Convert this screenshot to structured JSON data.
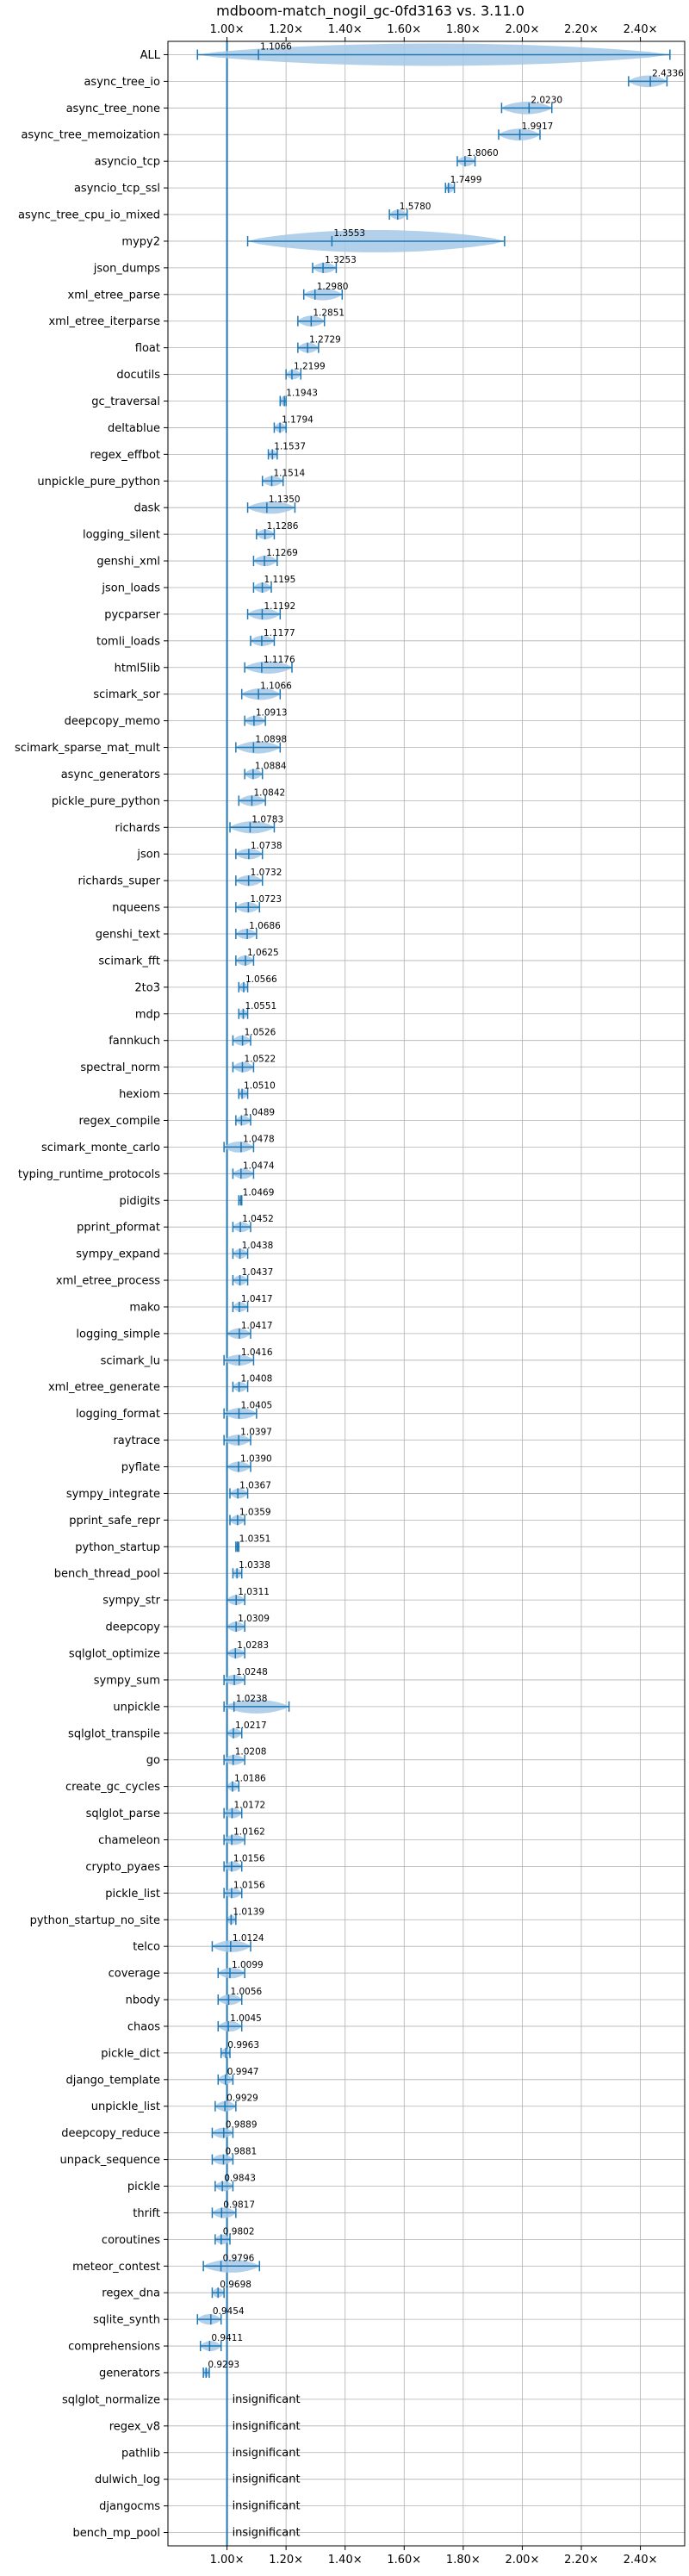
{
  "chart_data": {
    "type": "violin",
    "title": "mdboom-match_nogil_gc-0fd3163 vs. 3.11.0",
    "xlim": [
      0.8,
      2.55
    ],
    "xticks": [
      "1.00×",
      "1.20×",
      "1.40×",
      "1.60×",
      "1.80×",
      "2.00×",
      "2.20×",
      "2.40×"
    ],
    "xtick_values": [
      1.0,
      1.2,
      1.4,
      1.6,
      1.8,
      2.0,
      2.2,
      2.4
    ],
    "reference_line": 1.0,
    "grid": true,
    "accent_color": "#1f77b4",
    "violin_fill": "#a6c8e6",
    "categories": [
      "ALL",
      "async_tree_io",
      "async_tree_none",
      "async_tree_memoization",
      "asyncio_tcp",
      "asyncio_tcp_ssl",
      "async_tree_cpu_io_mixed",
      "mypy2",
      "json_dumps",
      "xml_etree_parse",
      "xml_etree_iterparse",
      "float",
      "docutils",
      "gc_traversal",
      "deltablue",
      "regex_effbot",
      "unpickle_pure_python",
      "dask",
      "logging_silent",
      "genshi_xml",
      "json_loads",
      "pycparser",
      "tomli_loads",
      "html5lib",
      "scimark_sor",
      "deepcopy_memo",
      "scimark_sparse_mat_mult",
      "async_generators",
      "pickle_pure_python",
      "richards",
      "json",
      "richards_super",
      "nqueens",
      "genshi_text",
      "scimark_fft",
      "2to3",
      "mdp",
      "fannkuch",
      "spectral_norm",
      "hexiom",
      "regex_compile",
      "scimark_monte_carlo",
      "typing_runtime_protocols",
      "pidigits",
      "pprint_pformat",
      "sympy_expand",
      "xml_etree_process",
      "mako",
      "logging_simple",
      "scimark_lu",
      "xml_etree_generate",
      "logging_format",
      "raytrace",
      "pyflate",
      "sympy_integrate",
      "pprint_safe_repr",
      "python_startup",
      "bench_thread_pool",
      "sympy_str",
      "deepcopy",
      "sqlglot_optimize",
      "sympy_sum",
      "unpickle",
      "sqlglot_transpile",
      "go",
      "create_gc_cycles",
      "sqlglot_parse",
      "chameleon",
      "crypto_pyaes",
      "pickle_list",
      "python_startup_no_site",
      "telco",
      "coverage",
      "nbody",
      "chaos",
      "pickle_dict",
      "django_template",
      "unpickle_list",
      "deepcopy_reduce",
      "unpack_sequence",
      "pickle",
      "thrift",
      "coroutines",
      "meteor_contest",
      "regex_dna",
      "sqlite_synth",
      "comprehensions",
      "generators",
      "sqlglot_normalize",
      "regex_v8",
      "pathlib",
      "dulwich_log",
      "djangocms",
      "bench_mp_pool"
    ],
    "values": [
      1.1066,
      2.4336,
      2.023,
      1.9917,
      1.806,
      1.7499,
      1.578,
      1.3553,
      1.3253,
      1.298,
      1.2851,
      1.2729,
      1.2199,
      1.1943,
      1.1794,
      1.1537,
      1.1514,
      1.135,
      1.1286,
      1.1269,
      1.1195,
      1.1192,
      1.1177,
      1.1176,
      1.1066,
      1.0913,
      1.0898,
      1.0884,
      1.0842,
      1.0783,
      1.0738,
      1.0732,
      1.0723,
      1.0686,
      1.0625,
      1.0566,
      1.0551,
      1.0526,
      1.0522,
      1.051,
      1.0489,
      1.0478,
      1.0474,
      1.0469,
      1.0452,
      1.0438,
      1.0437,
      1.0417,
      1.0417,
      1.0416,
      1.0408,
      1.0405,
      1.0397,
      1.039,
      1.0367,
      1.0359,
      1.0351,
      1.0338,
      1.0311,
      1.0309,
      1.0283,
      1.0248,
      1.0238,
      1.0217,
      1.0208,
      1.0186,
      1.0172,
      1.0162,
      1.0156,
      1.0156,
      1.0139,
      1.0124,
      1.0099,
      1.0056,
      1.0045,
      0.9963,
      0.9947,
      0.9929,
      0.9889,
      0.9881,
      0.9843,
      0.9817,
      0.9802,
      0.9796,
      0.9698,
      0.9454,
      0.9411,
      0.9293,
      null,
      null,
      null,
      null,
      null,
      null
    ],
    "value_labels": [
      "1.1066",
      "2.4336",
      "2.0230",
      "1.9917",
      "1.8060",
      "1.7499",
      "1.5780",
      "1.3553",
      "1.3253",
      "1.2980",
      "1.2851",
      "1.2729",
      "1.2199",
      "1.1943",
      "1.1794",
      "1.1537",
      "1.1514",
      "1.1350",
      "1.1286",
      "1.1269",
      "1.1195",
      "1.1192",
      "1.1177",
      "1.1176",
      "1.1066",
      "1.0913",
      "1.0898",
      "1.0884",
      "1.0842",
      "1.0783",
      "1.0738",
      "1.0732",
      "1.0723",
      "1.0686",
      "1.0625",
      "1.0566",
      "1.0551",
      "1.0526",
      "1.0522",
      "1.0510",
      "1.0489",
      "1.0478",
      "1.0474",
      "1.0469",
      "1.0452",
      "1.0438",
      "1.0437",
      "1.0417",
      "1.0417",
      "1.0416",
      "1.0408",
      "1.0405",
      "1.0397",
      "1.0390",
      "1.0367",
      "1.0359",
      "1.0351",
      "1.0338",
      "1.0311",
      "1.0309",
      "1.0283",
      "1.0248",
      "1.0238",
      "1.0217",
      "1.0208",
      "1.0186",
      "1.0172",
      "1.0162",
      "1.0156",
      "1.0156",
      "1.0139",
      "1.0124",
      "1.0099",
      "1.0056",
      "1.0045",
      "0.9963",
      "0.9947",
      "0.9929",
      "0.9889",
      "0.9881",
      "0.9843",
      "0.9817",
      "0.9802",
      "0.9796",
      "0.9698",
      "0.9454",
      "0.9411",
      "0.9293",
      "",
      "",
      "",
      "",
      "",
      ""
    ],
    "insignificant_label": "insignificant",
    "whisker_ranges": [
      [
        0.9,
        2.5
      ],
      [
        2.36,
        2.49
      ],
      [
        1.93,
        2.1
      ],
      [
        1.92,
        2.06
      ],
      [
        1.78,
        1.84
      ],
      [
        1.74,
        1.77
      ],
      [
        1.55,
        1.61
      ],
      [
        1.07,
        1.94
      ],
      [
        1.29,
        1.37
      ],
      [
        1.26,
        1.39
      ],
      [
        1.24,
        1.33
      ],
      [
        1.24,
        1.31
      ],
      [
        1.2,
        1.25
      ],
      [
        1.18,
        1.2
      ],
      [
        1.16,
        1.2
      ],
      [
        1.14,
        1.17
      ],
      [
        1.12,
        1.19
      ],
      [
        1.07,
        1.23
      ],
      [
        1.1,
        1.16
      ],
      [
        1.09,
        1.17
      ],
      [
        1.09,
        1.15
      ],
      [
        1.07,
        1.18
      ],
      [
        1.08,
        1.16
      ],
      [
        1.06,
        1.22
      ],
      [
        1.05,
        1.18
      ],
      [
        1.06,
        1.13
      ],
      [
        1.03,
        1.18
      ],
      [
        1.06,
        1.12
      ],
      [
        1.04,
        1.13
      ],
      [
        1.01,
        1.16
      ],
      [
        1.03,
        1.12
      ],
      [
        1.03,
        1.12
      ],
      [
        1.03,
        1.11
      ],
      [
        1.03,
        1.1
      ],
      [
        1.03,
        1.09
      ],
      [
        1.04,
        1.07
      ],
      [
        1.04,
        1.07
      ],
      [
        1.02,
        1.08
      ],
      [
        1.02,
        1.09
      ],
      [
        1.04,
        1.07
      ],
      [
        1.03,
        1.08
      ],
      [
        0.99,
        1.09
      ],
      [
        1.02,
        1.09
      ],
      [
        1.04,
        1.05
      ],
      [
        1.02,
        1.08
      ],
      [
        1.02,
        1.07
      ],
      [
        1.02,
        1.07
      ],
      [
        1.02,
        1.07
      ],
      [
        1.0,
        1.08
      ],
      [
        0.99,
        1.09
      ],
      [
        1.02,
        1.07
      ],
      [
        0.99,
        1.1
      ],
      [
        0.99,
        1.08
      ],
      [
        1.0,
        1.08
      ],
      [
        1.01,
        1.07
      ],
      [
        1.01,
        1.06
      ],
      [
        1.03,
        1.04
      ],
      [
        1.02,
        1.05
      ],
      [
        1.0,
        1.06
      ],
      [
        1.0,
        1.06
      ],
      [
        1.0,
        1.06
      ],
      [
        0.99,
        1.06
      ],
      [
        0.99,
        1.21
      ],
      [
        1.0,
        1.05
      ],
      [
        0.99,
        1.06
      ],
      [
        1.0,
        1.04
      ],
      [
        0.99,
        1.05
      ],
      [
        0.99,
        1.06
      ],
      [
        0.99,
        1.05
      ],
      [
        0.99,
        1.05
      ],
      [
        1.0,
        1.03
      ],
      [
        0.95,
        1.08
      ],
      [
        0.97,
        1.06
      ],
      [
        0.97,
        1.05
      ],
      [
        0.97,
        1.05
      ],
      [
        0.98,
        1.01
      ],
      [
        0.97,
        1.02
      ],
      [
        0.96,
        1.03
      ],
      [
        0.95,
        1.02
      ],
      [
        0.95,
        1.02
      ],
      [
        0.96,
        1.02
      ],
      [
        0.95,
        1.03
      ],
      [
        0.96,
        1.01
      ],
      [
        0.92,
        1.11
      ],
      [
        0.95,
        0.99
      ],
      [
        0.9,
        0.98
      ],
      [
        0.91,
        0.98
      ],
      [
        0.92,
        0.94
      ],
      null,
      null,
      null,
      null,
      null,
      null
    ]
  }
}
